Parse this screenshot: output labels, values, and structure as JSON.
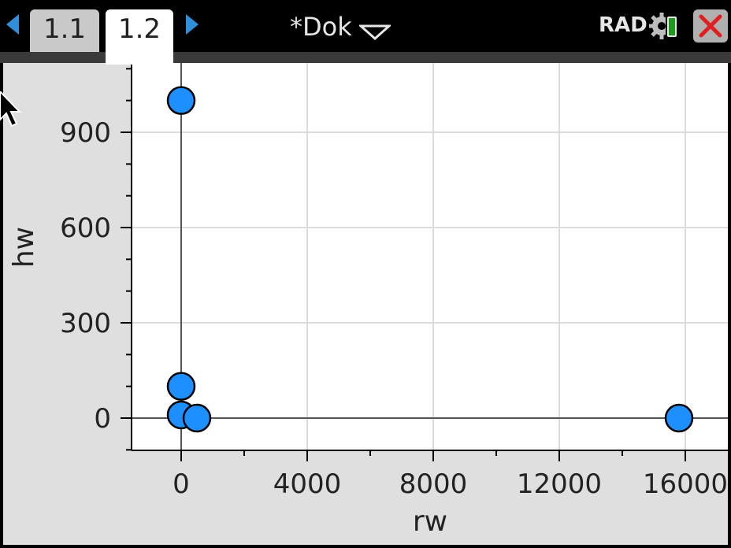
{
  "tabs": [
    {
      "label": "1.1",
      "active": false
    },
    {
      "label": "1.2",
      "active": true
    }
  ],
  "document": {
    "title": "*Dok"
  },
  "status": {
    "angle_mode": "RAD"
  },
  "icons": [
    "prev-page-icon",
    "next-page-icon",
    "dropdown-caret-icon",
    "settings-gear-icon",
    "battery-icon",
    "close-icon",
    "mouse-pointer-icon"
  ],
  "colors": {
    "point_fill": "#1e8fff",
    "plot_bg": "#ffffff",
    "frame_bg": "#dfdfdf",
    "close_x": "#e02020"
  },
  "chart_data": {
    "type": "scatter",
    "xlabel": "rw",
    "ylabel": "hw",
    "xlim": [
      -1600,
      17400
    ],
    "ylim": [
      -100,
      1100
    ],
    "x_ticks": [
      0,
      4000,
      8000,
      12000,
      16000
    ],
    "y_ticks": [
      0,
      300,
      600,
      900
    ],
    "grid": true,
    "points": [
      {
        "x": 0,
        "y": 1000
      },
      {
        "x": 0,
        "y": 100
      },
      {
        "x": 0,
        "y": 10
      },
      {
        "x": 500,
        "y": 0
      },
      {
        "x": 15800,
        "y": 0
      }
    ]
  }
}
